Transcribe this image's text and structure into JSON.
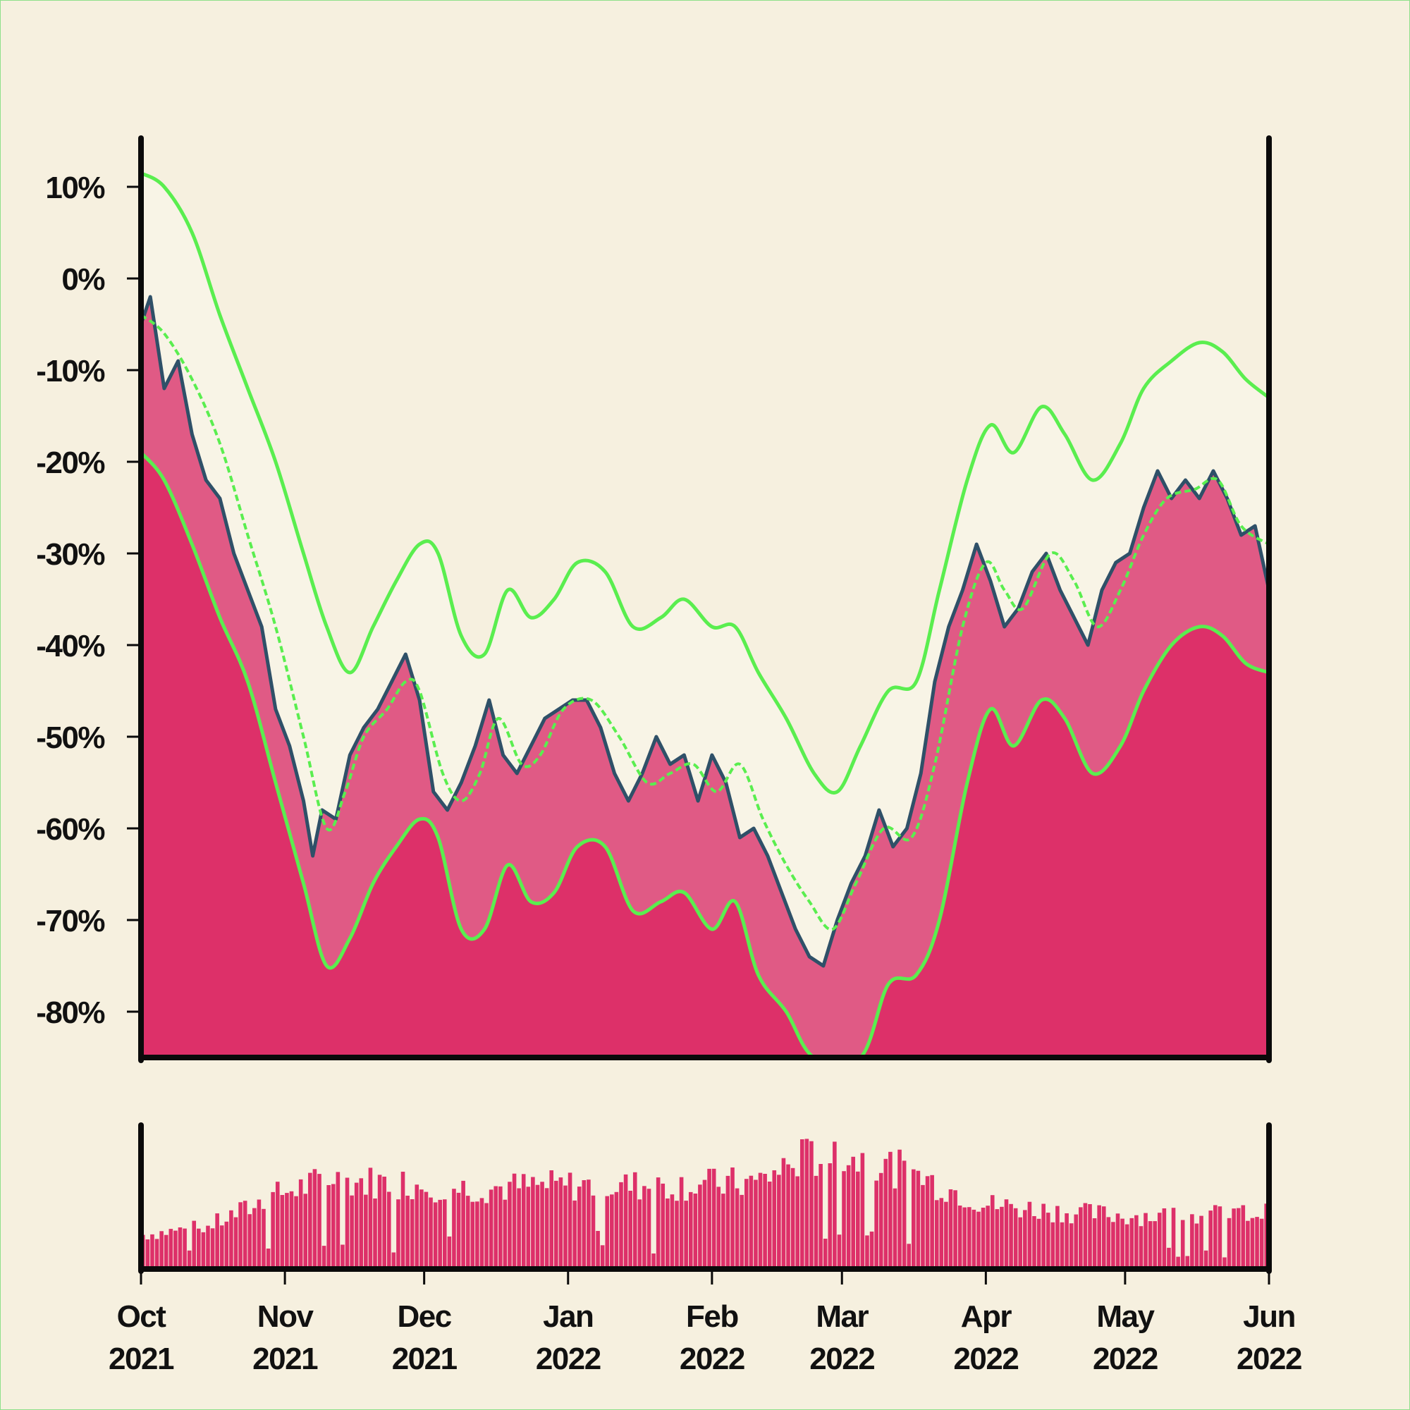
{
  "colors": {
    "background": "#f6f0df",
    "fill_outer": "#dd3069",
    "fill_inner": "#e05a85",
    "band_light": "#f8f4e6",
    "price_line": "#2f5068",
    "band_lines": "#5aee4f",
    "axis": "#0a0a0a",
    "volume_bars": "#dd3069"
  },
  "chart_data": {
    "type": "area",
    "title": "",
    "xlabel": "",
    "ylabel": "",
    "x_range": [
      "2021-10-01",
      "2022-06-01"
    ],
    "ylim": [
      -85,
      15
    ],
    "y_ticks": [
      {
        "value": 10,
        "label": "10%"
      },
      {
        "value": 0,
        "label": "0%"
      },
      {
        "value": -10,
        "label": "-10%"
      },
      {
        "value": -20,
        "label": "-20%"
      },
      {
        "value": -30,
        "label": "-30%"
      },
      {
        "value": -40,
        "label": "-40%"
      },
      {
        "value": -50,
        "label": "-50%"
      },
      {
        "value": -60,
        "label": "-60%"
      },
      {
        "value": -70,
        "label": "-70%"
      },
      {
        "value": -80,
        "label": "-80%"
      }
    ],
    "x_ticks": [
      {
        "date": "2021-10-01",
        "month": "Oct",
        "year": "2021"
      },
      {
        "date": "2021-11-01",
        "month": "Nov",
        "year": "2021"
      },
      {
        "date": "2021-12-01",
        "month": "Dec",
        "year": "2021"
      },
      {
        "date": "2022-01-01",
        "month": "Jan",
        "year": "2022"
      },
      {
        "date": "2022-02-01",
        "month": "Feb",
        "year": "2022"
      },
      {
        "date": "2022-03-01",
        "month": "Mar",
        "year": "2022"
      },
      {
        "date": "2022-04-01",
        "month": "Apr",
        "year": "2022"
      },
      {
        "date": "2022-05-01",
        "month": "May",
        "year": "2022"
      },
      {
        "date": "2022-06-01",
        "month": "Jun",
        "year": "2022"
      }
    ],
    "series": [
      {
        "role": "price",
        "points": [
          [
            "2021-10-01",
            -5
          ],
          [
            "2021-10-03",
            -2
          ],
          [
            "2021-10-06",
            -12
          ],
          [
            "2021-10-09",
            -9
          ],
          [
            "2021-10-12",
            -17
          ],
          [
            "2021-10-15",
            -22
          ],
          [
            "2021-10-18",
            -24
          ],
          [
            "2021-10-21",
            -30
          ],
          [
            "2021-10-24",
            -34
          ],
          [
            "2021-10-27",
            -38
          ],
          [
            "2021-10-30",
            -47
          ],
          [
            "2021-11-02",
            -51
          ],
          [
            "2021-11-05",
            -57
          ],
          [
            "2021-11-07",
            -63
          ],
          [
            "2021-11-09",
            -58
          ],
          [
            "2021-11-12",
            -59
          ],
          [
            "2021-11-15",
            -52
          ],
          [
            "2021-11-18",
            -49
          ],
          [
            "2021-11-21",
            -47
          ],
          [
            "2021-11-24",
            -44
          ],
          [
            "2021-11-27",
            -41
          ],
          [
            "2021-11-30",
            -46
          ],
          [
            "2021-12-03",
            -56
          ],
          [
            "2021-12-06",
            -58
          ],
          [
            "2021-12-09",
            -55
          ],
          [
            "2021-12-12",
            -51
          ],
          [
            "2021-12-15",
            -46
          ],
          [
            "2021-12-18",
            -52
          ],
          [
            "2021-12-21",
            -54
          ],
          [
            "2021-12-24",
            -51
          ],
          [
            "2021-12-27",
            -48
          ],
          [
            "2021-12-30",
            -47
          ],
          [
            "2022-01-02",
            -46
          ],
          [
            "2022-01-05",
            -46
          ],
          [
            "2022-01-08",
            -49
          ],
          [
            "2022-01-11",
            -54
          ],
          [
            "2022-01-14",
            -57
          ],
          [
            "2022-01-17",
            -54
          ],
          [
            "2022-01-20",
            -50
          ],
          [
            "2022-01-23",
            -53
          ],
          [
            "2022-01-26",
            -52
          ],
          [
            "2022-01-29",
            -57
          ],
          [
            "2022-02-01",
            -52
          ],
          [
            "2022-02-04",
            -55
          ],
          [
            "2022-02-07",
            -61
          ],
          [
            "2022-02-10",
            -60
          ],
          [
            "2022-02-13",
            -63
          ],
          [
            "2022-02-16",
            -67
          ],
          [
            "2022-02-19",
            -71
          ],
          [
            "2022-02-22",
            -74
          ],
          [
            "2022-02-25",
            -75
          ],
          [
            "2022-02-28",
            -70
          ],
          [
            "2022-03-03",
            -66
          ],
          [
            "2022-03-06",
            -63
          ],
          [
            "2022-03-09",
            -58
          ],
          [
            "2022-03-12",
            -62
          ],
          [
            "2022-03-15",
            -60
          ],
          [
            "2022-03-18",
            -54
          ],
          [
            "2022-03-21",
            -44
          ],
          [
            "2022-03-24",
            -38
          ],
          [
            "2022-03-27",
            -34
          ],
          [
            "2022-03-30",
            -29
          ],
          [
            "2022-04-02",
            -33
          ],
          [
            "2022-04-05",
            -38
          ],
          [
            "2022-04-08",
            -36
          ],
          [
            "2022-04-11",
            -32
          ],
          [
            "2022-04-14",
            -30
          ],
          [
            "2022-04-17",
            -34
          ],
          [
            "2022-04-20",
            -37
          ],
          [
            "2022-04-23",
            -40
          ],
          [
            "2022-04-26",
            -34
          ],
          [
            "2022-04-29",
            -31
          ],
          [
            "2022-05-02",
            -30
          ],
          [
            "2022-05-05",
            -25
          ],
          [
            "2022-05-08",
            -21
          ],
          [
            "2022-05-11",
            -24
          ],
          [
            "2022-05-14",
            -22
          ],
          [
            "2022-05-17",
            -24
          ],
          [
            "2022-05-20",
            -21
          ],
          [
            "2022-05-23",
            -24
          ],
          [
            "2022-05-26",
            -28
          ],
          [
            "2022-05-29",
            -27
          ],
          [
            "2022-06-01",
            -34
          ]
        ]
      },
      {
        "role": "moving-average",
        "points": [
          [
            "2021-10-01",
            -4
          ],
          [
            "2021-10-06",
            -6
          ],
          [
            "2021-10-12",
            -11
          ],
          [
            "2021-10-18",
            -18
          ],
          [
            "2021-10-24",
            -28
          ],
          [
            "2021-10-30",
            -38
          ],
          [
            "2021-11-05",
            -50
          ],
          [
            "2021-11-10",
            -60
          ],
          [
            "2021-11-14",
            -56
          ],
          [
            "2021-11-18",
            -50
          ],
          [
            "2021-11-23",
            -47
          ],
          [
            "2021-11-27",
            -44
          ],
          [
            "2021-11-30",
            -45
          ],
          [
            "2021-12-05",
            -54
          ],
          [
            "2021-12-09",
            -57
          ],
          [
            "2021-12-13",
            -54
          ],
          [
            "2021-12-17",
            -48
          ],
          [
            "2021-12-22",
            -53
          ],
          [
            "2021-12-26",
            -52
          ],
          [
            "2021-12-31",
            -47
          ],
          [
            "2022-01-06",
            -46
          ],
          [
            "2022-01-12",
            -50
          ],
          [
            "2022-01-18",
            -55
          ],
          [
            "2022-01-23",
            -54
          ],
          [
            "2022-01-28",
            -53
          ],
          [
            "2022-02-02",
            -56
          ],
          [
            "2022-02-07",
            -53
          ],
          [
            "2022-02-12",
            -59
          ],
          [
            "2022-02-17",
            -64
          ],
          [
            "2022-02-22",
            -68
          ],
          [
            "2022-02-27",
            -71
          ],
          [
            "2022-03-04",
            -66
          ],
          [
            "2022-03-10",
            -60
          ],
          [
            "2022-03-16",
            -61
          ],
          [
            "2022-03-21",
            -53
          ],
          [
            "2022-03-27",
            -38
          ],
          [
            "2022-04-01",
            -31
          ],
          [
            "2022-04-05",
            -34
          ],
          [
            "2022-04-09",
            -36
          ],
          [
            "2022-04-15",
            -30
          ],
          [
            "2022-04-20",
            -33
          ],
          [
            "2022-04-25",
            -38
          ],
          [
            "2022-04-30",
            -34
          ],
          [
            "2022-05-05",
            -28
          ],
          [
            "2022-05-10",
            -24
          ],
          [
            "2022-05-16",
            -23
          ],
          [
            "2022-05-21",
            -22
          ],
          [
            "2022-05-26",
            -27
          ],
          [
            "2022-06-01",
            -29
          ]
        ]
      },
      {
        "role": "upper-band",
        "points": [
          [
            "2021-10-01",
            11.5
          ],
          [
            "2021-10-06",
            10
          ],
          [
            "2021-10-12",
            5
          ],
          [
            "2021-10-18",
            -4
          ],
          [
            "2021-10-24",
            -12
          ],
          [
            "2021-10-30",
            -20
          ],
          [
            "2021-11-05",
            -30
          ],
          [
            "2021-11-10",
            -38
          ],
          [
            "2021-11-15",
            -43
          ],
          [
            "2021-11-20",
            -38
          ],
          [
            "2021-11-25",
            -33
          ],
          [
            "2021-11-30",
            -29
          ],
          [
            "2021-12-04",
            -30
          ],
          [
            "2021-12-09",
            -39
          ],
          [
            "2021-12-14",
            -41
          ],
          [
            "2021-12-19",
            -34
          ],
          [
            "2021-12-24",
            -37
          ],
          [
            "2021-12-29",
            -35
          ],
          [
            "2022-01-03",
            -31
          ],
          [
            "2022-01-09",
            -32
          ],
          [
            "2022-01-15",
            -38
          ],
          [
            "2022-01-21",
            -37
          ],
          [
            "2022-01-26",
            -35
          ],
          [
            "2022-02-01",
            -38
          ],
          [
            "2022-02-06",
            -38
          ],
          [
            "2022-02-11",
            -43
          ],
          [
            "2022-02-17",
            -48
          ],
          [
            "2022-02-23",
            -54
          ],
          [
            "2022-02-28",
            -56
          ],
          [
            "2022-03-05",
            -51
          ],
          [
            "2022-03-11",
            -45
          ],
          [
            "2022-03-17",
            -44
          ],
          [
            "2022-03-22",
            -34
          ],
          [
            "2022-03-28",
            -22
          ],
          [
            "2022-04-02",
            -16
          ],
          [
            "2022-04-07",
            -19
          ],
          [
            "2022-04-13",
            -14
          ],
          [
            "2022-04-18",
            -17
          ],
          [
            "2022-04-24",
            -22
          ],
          [
            "2022-04-30",
            -18
          ],
          [
            "2022-05-05",
            -12
          ],
          [
            "2022-05-11",
            -9
          ],
          [
            "2022-05-17",
            -7
          ],
          [
            "2022-05-22",
            -8
          ],
          [
            "2022-05-27",
            -11
          ],
          [
            "2022-06-01",
            -13
          ]
        ]
      },
      {
        "role": "lower-band",
        "points": [
          [
            "2021-10-01",
            -19
          ],
          [
            "2021-10-06",
            -22
          ],
          [
            "2021-10-12",
            -29
          ],
          [
            "2021-10-18",
            -37
          ],
          [
            "2021-10-24",
            -44
          ],
          [
            "2021-10-30",
            -55
          ],
          [
            "2021-11-05",
            -66
          ],
          [
            "2021-11-10",
            -75
          ],
          [
            "2021-11-15",
            -72
          ],
          [
            "2021-11-20",
            -66
          ],
          [
            "2021-11-25",
            -62
          ],
          [
            "2021-11-30",
            -59
          ],
          [
            "2021-12-04",
            -61
          ],
          [
            "2021-12-09",
            -71
          ],
          [
            "2021-12-14",
            -71
          ],
          [
            "2021-12-19",
            -64
          ],
          [
            "2021-12-24",
            -68
          ],
          [
            "2021-12-29",
            -67
          ],
          [
            "2022-01-03",
            -62
          ],
          [
            "2022-01-09",
            -62
          ],
          [
            "2022-01-15",
            -69
          ],
          [
            "2022-01-21",
            -68
          ],
          [
            "2022-01-26",
            -67
          ],
          [
            "2022-02-01",
            -71
          ],
          [
            "2022-02-06",
            -68
          ],
          [
            "2022-02-11",
            -76
          ],
          [
            "2022-02-17",
            -80
          ],
          [
            "2022-02-23",
            -85
          ],
          [
            "2022-03-05",
            -85
          ],
          [
            "2022-03-11",
            -77
          ],
          [
            "2022-03-17",
            -76
          ],
          [
            "2022-03-22",
            -70
          ],
          [
            "2022-03-28",
            -55
          ],
          [
            "2022-04-02",
            -47
          ],
          [
            "2022-04-07",
            -51
          ],
          [
            "2022-04-13",
            -46
          ],
          [
            "2022-04-18",
            -48
          ],
          [
            "2022-04-24",
            -54
          ],
          [
            "2022-04-30",
            -51
          ],
          [
            "2022-05-05",
            -45
          ],
          [
            "2022-05-11",
            -40
          ],
          [
            "2022-05-17",
            -38
          ],
          [
            "2022-05-22",
            -39
          ],
          [
            "2022-05-27",
            -42
          ],
          [
            "2022-06-01",
            -43
          ]
        ]
      }
    ],
    "volume": {
      "ylim": [
        0,
        100
      ],
      "profile": [
        [
          "2021-10-01",
          24
        ],
        [
          "2021-10-15",
          30
        ],
        [
          "2021-11-01",
          56
        ],
        [
          "2021-11-10",
          64
        ],
        [
          "2021-11-25",
          62
        ],
        [
          "2021-12-10",
          58
        ],
        [
          "2022-01-01",
          60
        ],
        [
          "2022-01-20",
          60
        ],
        [
          "2022-02-10",
          62
        ],
        [
          "2022-02-20",
          80
        ],
        [
          "2022-03-01",
          82
        ],
        [
          "2022-03-15",
          70
        ],
        [
          "2022-04-01",
          46
        ],
        [
          "2022-04-20",
          40
        ],
        [
          "2022-05-01",
          38
        ],
        [
          "2022-05-15",
          38
        ],
        [
          "2022-06-01",
          40
        ]
      ]
    }
  }
}
